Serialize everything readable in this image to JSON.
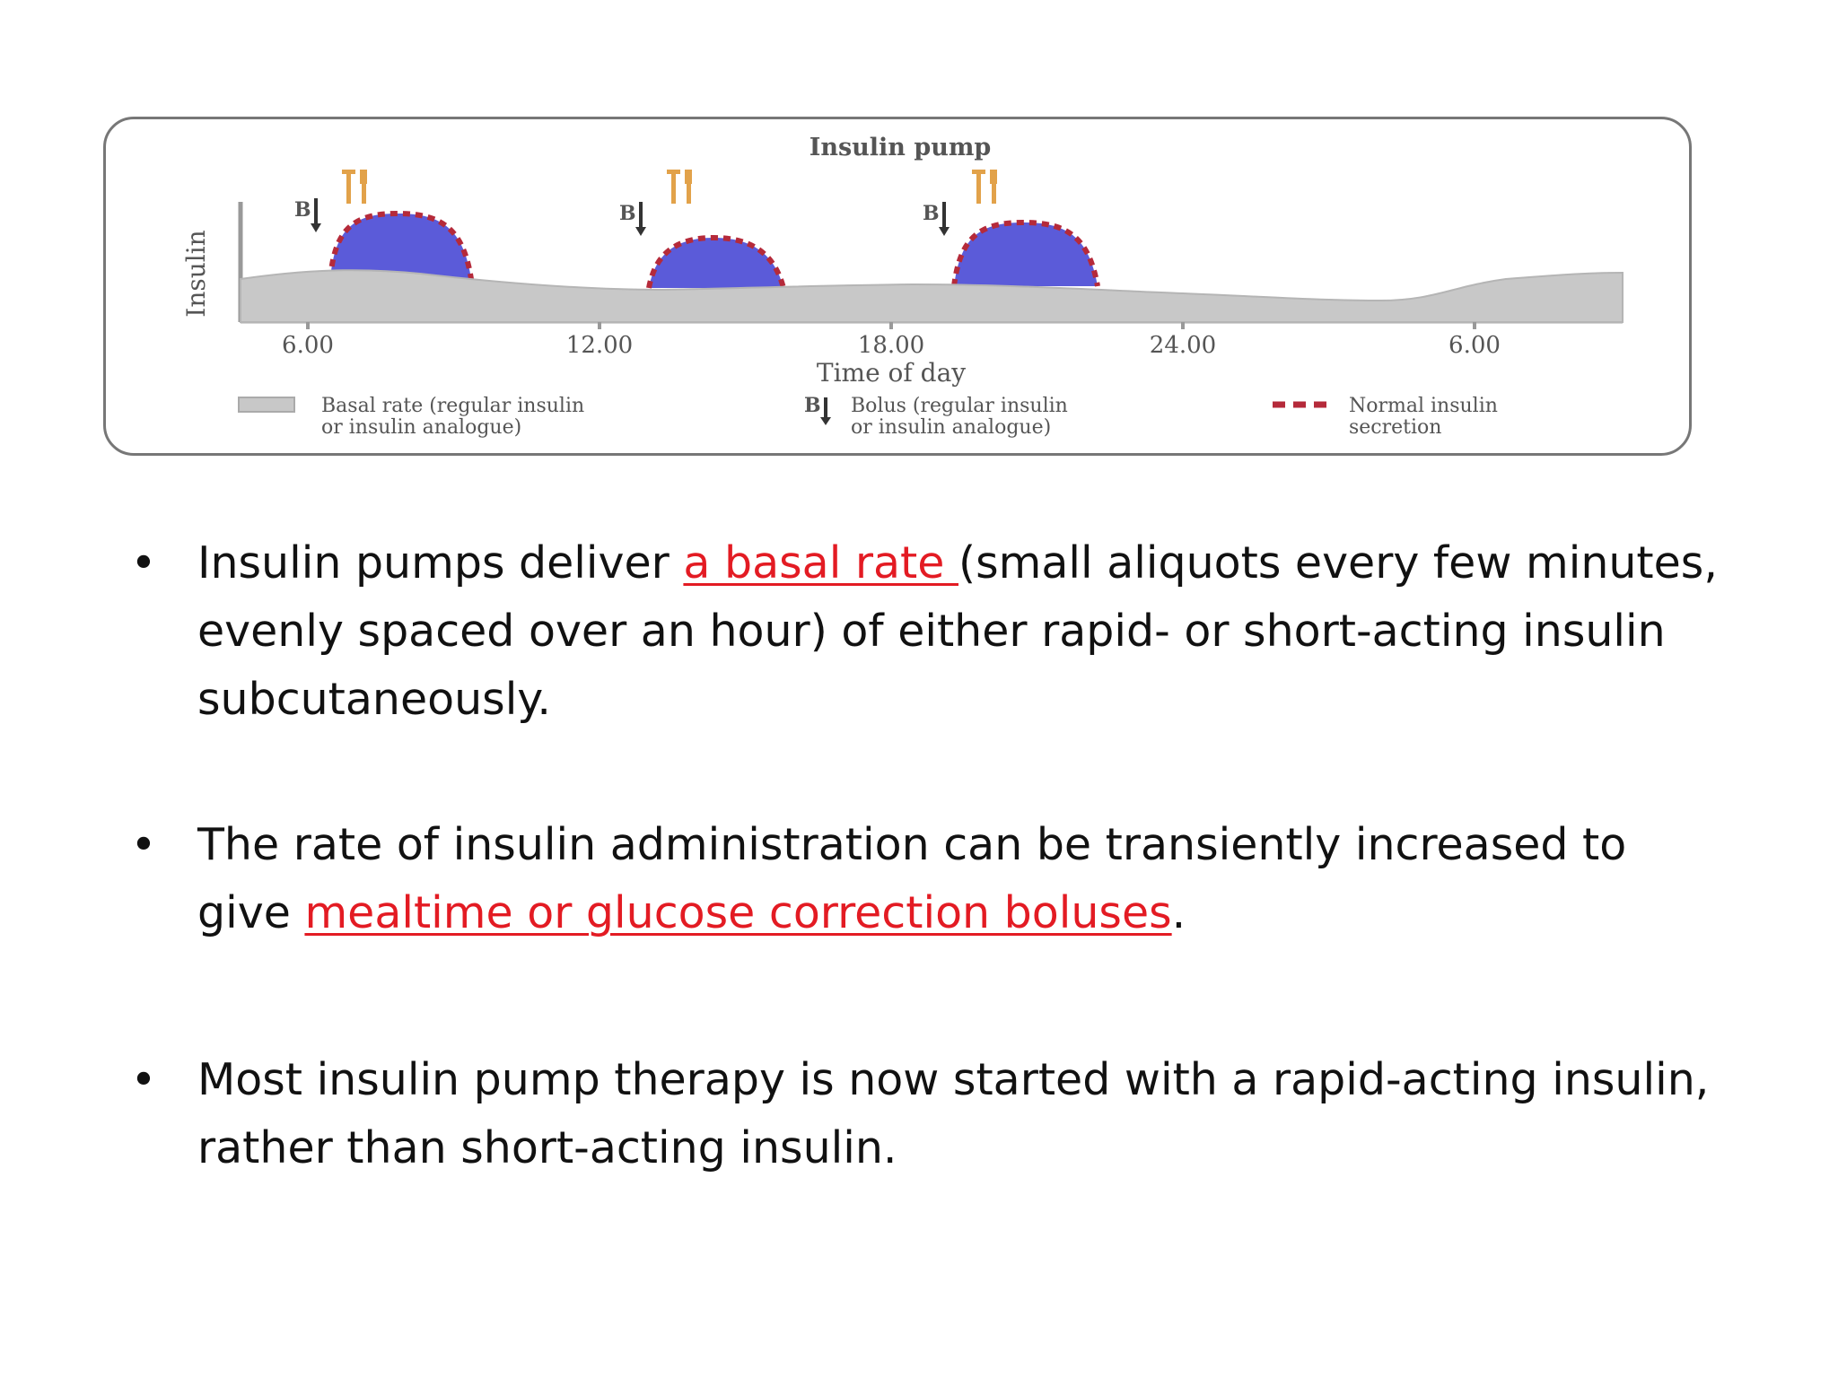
{
  "figure": {
    "title": "Insulin pump",
    "y_label": "Insulin",
    "x_label": "Time of day",
    "ticks": [
      "6.00",
      "12.00",
      "18.00",
      "24.00",
      "6.00"
    ],
    "bolus_marker": "B",
    "legend": {
      "basal_line1": "Basal rate (regular insulin",
      "basal_line2": "or insulin analogue)",
      "bolus_marker": "B",
      "bolus_line1": "Bolus (regular insulin",
      "bolus_line2": "or insulin analogue)",
      "normal_line1": "Normal insulin",
      "normal_line2": "secretion"
    },
    "colors": {
      "basal_fill": "#c8c8c8",
      "bolus_fill": "#5b5bd9",
      "normal_secretion": "#b52a3a",
      "meal_icon": "#e2a24a"
    },
    "icons": [
      "fork-knife-icon",
      "down-arrow-icon"
    ]
  },
  "bullets": [
    {
      "pre": "Insulin pumps deliver ",
      "link": "a basal rate ",
      "post": "(small aliquots every few minutes, evenly spaced over an hour) of either rapid- or short-acting insulin subcutaneously."
    },
    {
      "pre": "The rate of insulin administration can be transiently increased to give ",
      "link": "mealtime or glucose correction boluses",
      "post": "."
    },
    {
      "pre": "Most insulin pump therapy is now started with a rapid-acting insulin, rather than short-acting insulin.",
      "link": "",
      "post": ""
    }
  ],
  "bullet_symbol": "•"
}
